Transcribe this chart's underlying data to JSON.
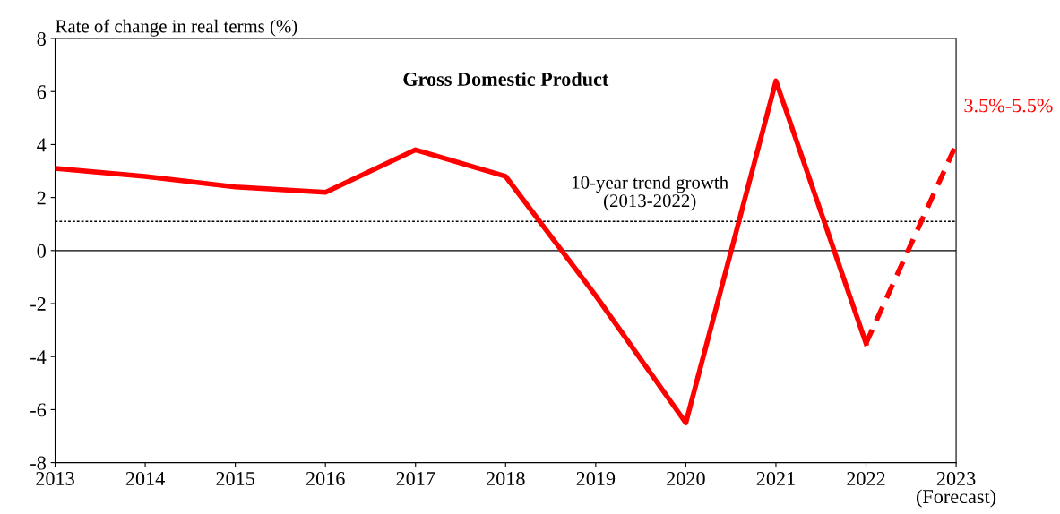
{
  "chart_data": {
    "type": "line",
    "title": "Gross Domestic Product",
    "ylabel": "Rate of change in real terms (%)",
    "series": [
      {
        "color": "#ff0000",
        "x": [
          2013,
          2014,
          2015,
          2016,
          2017,
          2018,
          2019,
          2020,
          2021,
          2022
        ],
        "values": [
          3.1,
          2.8,
          2.4,
          2.2,
          3.8,
          2.8,
          -1.7,
          -6.5,
          6.4,
          -3.5
        ],
        "line_style": "solid"
      },
      {
        "color": "#ff0000",
        "x": [
          2022,
          2023
        ],
        "values": [
          -3.5,
          4.0
        ],
        "line_style": "dashed"
      }
    ],
    "annotations": [
      {
        "text": "3.5%-5.5%",
        "x": 2023,
        "y": 4.0
      }
    ],
    "ref_lines": [
      {
        "axis": "y",
        "value": 1.1,
        "label": "10-year trend growth\n(2013-2022)",
        "line_style": "dotted",
        "color": "#000000"
      },
      {
        "axis": "y",
        "value": 0,
        "line_style": "solid",
        "color": "#000000"
      }
    ],
    "xlim": [
      2013,
      2023
    ],
    "xticks": [
      2013,
      2014,
      2015,
      2016,
      2017,
      2018,
      2019,
      2020,
      2021,
      2022,
      {
        "value": 2023,
        "label": "2023\n(Forecast)"
      }
    ],
    "ylim": [
      -8,
      8
    ],
    "yticks": [
      -8,
      -6,
      -4,
      -2,
      0,
      2,
      4,
      6,
      8
    ],
    "grid": false,
    "legend": false,
    "marker": "none"
  }
}
